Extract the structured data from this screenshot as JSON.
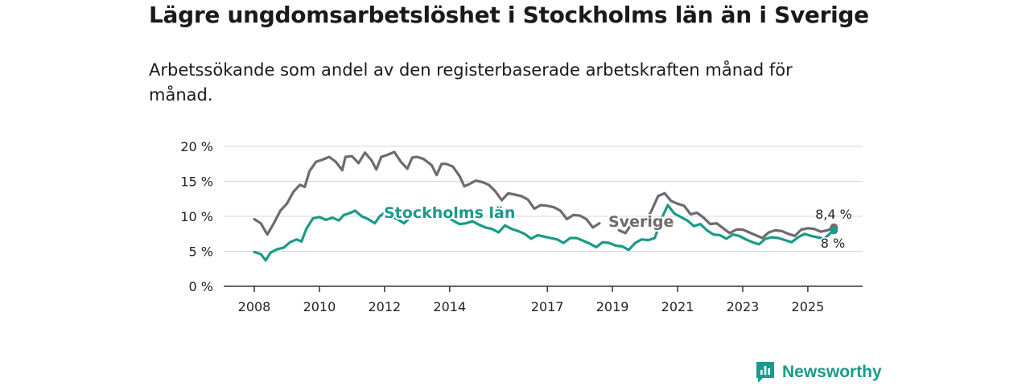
{
  "title": "Lägre ungdomsarbetslöshet i Stockholms län än i Sverige",
  "subtitle": "Arbetssökande som andel av den registerbaserade arbetskraften månad för månad.",
  "brand": {
    "name": "Newsworthy",
    "icon": "newsworthy-logo-icon",
    "color": "#1a9a8a"
  },
  "chart_data": {
    "type": "line",
    "grid": true,
    "legend": "inline labels on lines",
    "ylim": [
      0,
      20
    ],
    "yticks": [
      "0 %",
      "5 %",
      "10 %",
      "15 %",
      "20 %"
    ],
    "xlim": [
      2008,
      2026
    ],
    "xticks": [
      "2008",
      "2010",
      "2012",
      "2014",
      "2017",
      "2019",
      "2021",
      "2023",
      "2025"
    ],
    "series": [
      {
        "name": "Sverige",
        "color": "#6e6a6f",
        "end_label": "8,4 %",
        "points": [
          [
            2008.0,
            9.6
          ],
          [
            2008.2,
            9.0
          ],
          [
            2008.4,
            7.4
          ],
          [
            2008.6,
            9.0
          ],
          [
            2008.8,
            10.8
          ],
          [
            2009.0,
            11.8
          ],
          [
            2009.2,
            13.5
          ],
          [
            2009.4,
            14.5
          ],
          [
            2009.55,
            14.2
          ],
          [
            2009.7,
            16.5
          ],
          [
            2009.9,
            17.8
          ],
          [
            2010.1,
            18.1
          ],
          [
            2010.3,
            18.5
          ],
          [
            2010.5,
            17.8
          ],
          [
            2010.7,
            16.6
          ],
          [
            2010.8,
            18.5
          ],
          [
            2011.0,
            18.6
          ],
          [
            2011.2,
            17.6
          ],
          [
            2011.4,
            19.1
          ],
          [
            2011.6,
            18.0
          ],
          [
            2011.75,
            16.7
          ],
          [
            2011.9,
            18.5
          ],
          [
            2012.1,
            18.8
          ],
          [
            2012.3,
            19.2
          ],
          [
            2012.5,
            17.8
          ],
          [
            2012.7,
            16.8
          ],
          [
            2012.85,
            18.4
          ],
          [
            2013.0,
            18.5
          ],
          [
            2013.2,
            18.2
          ],
          [
            2013.45,
            17.3
          ],
          [
            2013.6,
            15.9
          ],
          [
            2013.75,
            17.5
          ],
          [
            2013.9,
            17.5
          ],
          [
            2014.1,
            17.1
          ],
          [
            2014.3,
            15.8
          ],
          [
            2014.45,
            14.3
          ],
          [
            2014.6,
            14.6
          ],
          [
            2014.8,
            15.1
          ],
          [
            2015.0,
            14.9
          ],
          [
            2015.2,
            14.5
          ],
          [
            2015.4,
            13.6
          ],
          [
            2015.6,
            12.3
          ],
          [
            2015.8,
            13.3
          ],
          [
            2016.0,
            13.1
          ],
          [
            2016.2,
            12.9
          ],
          [
            2016.4,
            12.4
          ],
          [
            2016.6,
            11.1
          ],
          [
            2016.8,
            11.6
          ],
          [
            2017.0,
            11.5
          ],
          [
            2017.2,
            11.3
          ],
          [
            2017.4,
            10.8
          ],
          [
            2017.6,
            9.6
          ],
          [
            2017.8,
            10.2
          ],
          [
            2018.0,
            10.1
          ],
          [
            2018.2,
            9.6
          ],
          [
            2018.4,
            8.4
          ],
          [
            2018.6,
            9.0
          ]
        ]
      },
      {
        "name": "Stockholms län",
        "color": "#1a9a8a",
        "end_label": "8 %",
        "points": [
          [
            2008.0,
            4.9
          ],
          [
            2008.2,
            4.6
          ],
          [
            2008.35,
            3.7
          ],
          [
            2008.5,
            4.8
          ],
          [
            2008.7,
            5.3
          ],
          [
            2008.9,
            5.5
          ],
          [
            2009.1,
            6.3
          ],
          [
            2009.3,
            6.7
          ],
          [
            2009.45,
            6.4
          ],
          [
            2009.6,
            8.2
          ],
          [
            2009.8,
            9.7
          ],
          [
            2010.0,
            9.9
          ],
          [
            2010.2,
            9.5
          ],
          [
            2010.4,
            9.8
          ],
          [
            2010.6,
            9.4
          ],
          [
            2010.75,
            10.2
          ],
          [
            2010.9,
            10.4
          ],
          [
            2011.1,
            10.8
          ],
          [
            2011.3,
            10.0
          ],
          [
            2011.5,
            9.6
          ],
          [
            2011.7,
            9.0
          ],
          [
            2011.85,
            10.0
          ],
          [
            2012.0,
            10.5
          ],
          [
            2012.2,
            10.0
          ],
          [
            2012.4,
            9.6
          ],
          [
            2012.6,
            9.0
          ],
          [
            2012.8,
            9.9
          ]
        ]
      }
    ],
    "series_continuation": {
      "Sverige": [
        [
          2019.2,
          8.0
        ],
        [
          2019.4,
          7.6
        ],
        [
          2019.6,
          9.0
        ],
        [
          2020.0,
          9.2
        ],
        [
          2020.2,
          10.8
        ],
        [
          2020.4,
          12.9
        ],
        [
          2020.6,
          13.3
        ],
        [
          2020.8,
          12.2
        ],
        [
          2021.0,
          11.8
        ],
        [
          2021.2,
          11.5
        ],
        [
          2021.4,
          10.3
        ],
        [
          2021.6,
          10.5
        ],
        [
          2021.8,
          9.8
        ],
        [
          2022.0,
          8.9
        ],
        [
          2022.2,
          9.0
        ],
        [
          2022.4,
          8.3
        ],
        [
          2022.6,
          7.6
        ],
        [
          2022.8,
          8.1
        ],
        [
          2023.0,
          8.1
        ],
        [
          2023.2,
          7.7
        ],
        [
          2023.4,
          7.3
        ],
        [
          2023.6,
          6.9
        ],
        [
          2023.8,
          7.7
        ],
        [
          2024.0,
          8.0
        ],
        [
          2024.2,
          7.9
        ],
        [
          2024.4,
          7.5
        ],
        [
          2024.6,
          7.2
        ],
        [
          2024.8,
          8.1
        ],
        [
          2025.0,
          8.3
        ],
        [
          2025.2,
          8.2
        ],
        [
          2025.4,
          7.8
        ],
        [
          2025.6,
          8.0
        ],
        [
          2025.8,
          8.4
        ]
      ],
      "Stockholms län": [
        [
          2013.9,
          10.0
        ],
        [
          2014.1,
          9.4
        ],
        [
          2014.3,
          8.9
        ],
        [
          2014.5,
          9.0
        ],
        [
          2014.7,
          9.3
        ],
        [
          2014.9,
          8.8
        ],
        [
          2015.1,
          8.4
        ],
        [
          2015.3,
          8.2
        ],
        [
          2015.5,
          7.7
        ],
        [
          2015.7,
          8.7
        ],
        [
          2015.9,
          8.2
        ],
        [
          2016.1,
          7.9
        ],
        [
          2016.3,
          7.5
        ],
        [
          2016.5,
          6.8
        ],
        [
          2016.7,
          7.3
        ],
        [
          2016.9,
          7.1
        ],
        [
          2017.1,
          6.9
        ],
        [
          2017.3,
          6.7
        ],
        [
          2017.5,
          6.2
        ],
        [
          2017.7,
          6.9
        ],
        [
          2017.9,
          6.9
        ],
        [
          2018.1,
          6.5
        ],
        [
          2018.3,
          6.1
        ],
        [
          2018.5,
          5.6
        ],
        [
          2018.7,
          6.3
        ],
        [
          2018.9,
          6.2
        ],
        [
          2019.1,
          5.8
        ],
        [
          2019.3,
          5.7
        ],
        [
          2019.5,
          5.2
        ],
        [
          2019.7,
          6.2
        ],
        [
          2019.9,
          6.7
        ],
        [
          2020.1,
          6.6
        ],
        [
          2020.3,
          6.9
        ],
        [
          2020.5,
          9.6
        ],
        [
          2020.7,
          11.6
        ],
        [
          2020.9,
          10.4
        ],
        [
          2021.1,
          9.9
        ],
        [
          2021.3,
          9.4
        ],
        [
          2021.5,
          8.6
        ],
        [
          2021.7,
          8.9
        ],
        [
          2021.9,
          8.0
        ],
        [
          2022.1,
          7.4
        ],
        [
          2022.3,
          7.3
        ],
        [
          2022.5,
          6.8
        ],
        [
          2022.7,
          7.4
        ],
        [
          2022.9,
          7.2
        ],
        [
          2023.1,
          6.7
        ],
        [
          2023.3,
          6.3
        ],
        [
          2023.5,
          6.0
        ],
        [
          2023.7,
          6.8
        ],
        [
          2023.9,
          7.0
        ],
        [
          2024.1,
          6.9
        ],
        [
          2024.3,
          6.6
        ],
        [
          2024.5,
          6.3
        ],
        [
          2024.7,
          7.0
        ],
        [
          2024.9,
          7.5
        ],
        [
          2025.1,
          7.2
        ],
        [
          2025.3,
          7.0
        ],
        [
          2025.5,
          6.8
        ],
        [
          2025.7,
          7.6
        ],
        [
          2025.8,
          8.0
        ]
      ]
    }
  }
}
